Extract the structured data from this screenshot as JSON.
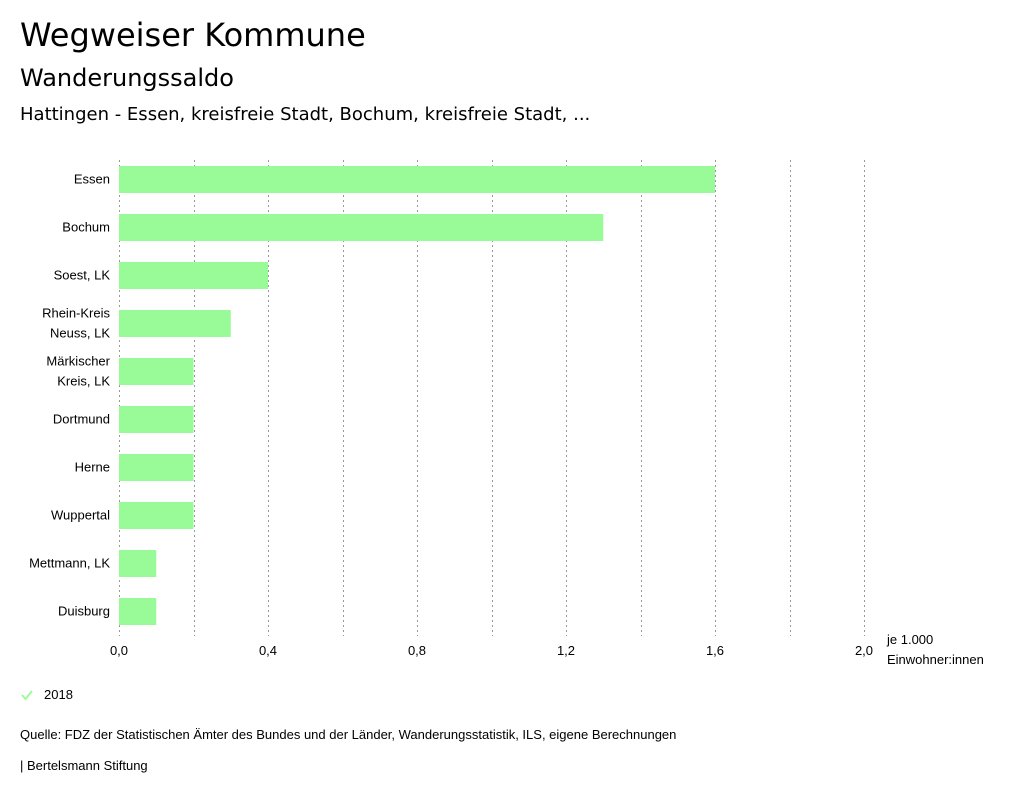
{
  "header": {
    "title": "Wegweiser Kommune",
    "subtitle": "Wanderungssaldo",
    "context": "Hattingen - Essen, kreisfreie Stadt, Bochum, kreisfreie Stadt, ..."
  },
  "unit": {
    "line1": "je 1.000",
    "line2": "Einwohner:innen"
  },
  "legend": {
    "items": [
      {
        "label": "2018",
        "color": "#98fb98",
        "icon": "check-icon"
      }
    ]
  },
  "footer": {
    "source": "Quelle: FDZ der Statistischen Ämter des Bundes und der Länder, Wanderungsstatistik, ILS, eigene Berechnungen",
    "publisher": "| Bertelsmann Stiftung"
  },
  "chart_data": {
    "type": "bar",
    "orientation": "horizontal",
    "categories": [
      [
        "Essen"
      ],
      [
        "Bochum"
      ],
      [
        "Soest, LK"
      ],
      [
        "Rhein-Kreis",
        "Neuss, LK"
      ],
      [
        "Märkischer",
        "Kreis, LK"
      ],
      [
        "Dortmund"
      ],
      [
        "Herne"
      ],
      [
        "Wuppertal"
      ],
      [
        "Mettmann, LK"
      ],
      [
        "Duisburg"
      ]
    ],
    "series": [
      {
        "name": "2018",
        "color": "#98fb98",
        "values": [
          1.6,
          1.3,
          0.4,
          0.3,
          0.2,
          0.2,
          0.2,
          0.2,
          0.1,
          0.1
        ]
      }
    ],
    "xlim": [
      0,
      2.0
    ],
    "xticks": [
      0,
      0.4,
      0.8,
      1.2,
      1.6,
      2.0
    ],
    "xtick_labels": [
      "0,0",
      "0,4",
      "0,8",
      "1,2",
      "1,6",
      "2,0"
    ],
    "grid_step": 0.2,
    "grid": true,
    "legend_position": "bottom-left"
  }
}
